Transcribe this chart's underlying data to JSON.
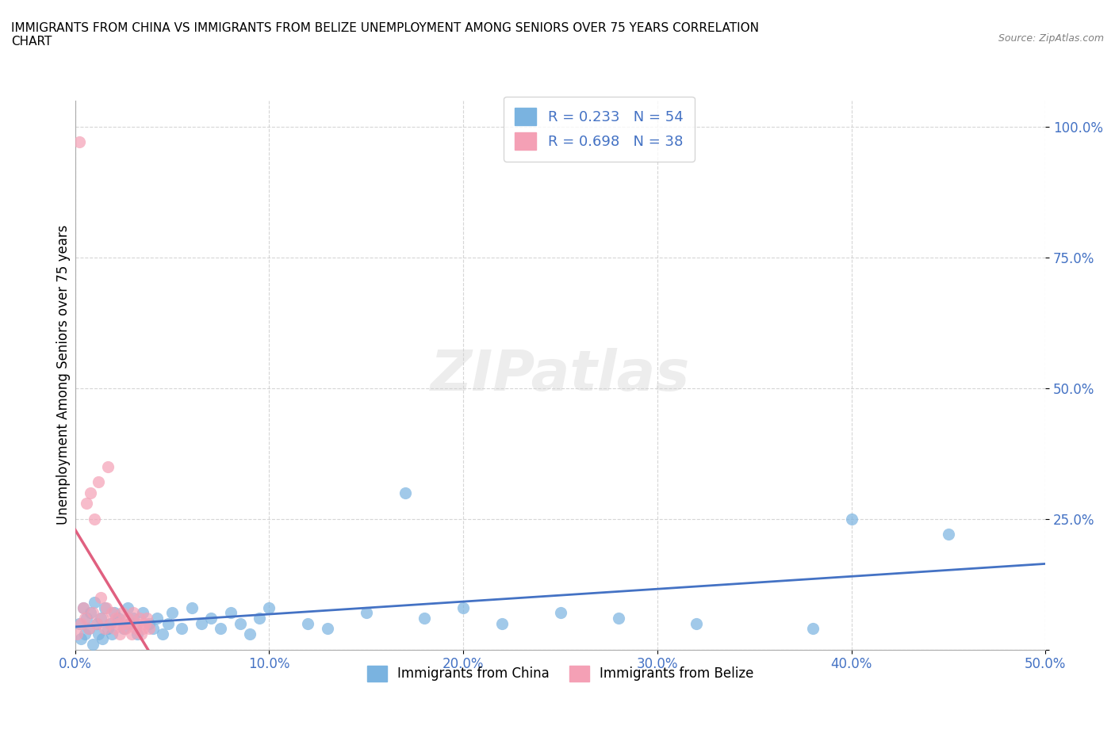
{
  "title": "IMMIGRANTS FROM CHINA VS IMMIGRANTS FROM BELIZE UNEMPLOYMENT AMONG SENIORS OVER 75 YEARS CORRELATION\nCHART",
  "source": "Source: ZipAtlas.com",
  "ylabel": "Unemployment Among Seniors over 75 years",
  "xlabel": "",
  "xlim": [
    0.0,
    0.5
  ],
  "ylim": [
    0.0,
    1.05
  ],
  "xticks": [
    0.0,
    0.1,
    0.2,
    0.3,
    0.4,
    0.5
  ],
  "xticklabels": [
    "0.0%",
    "10.0%",
    "20.0%",
    "30.0%",
    "40.0%",
    "50.0%"
  ],
  "yticks": [
    0.0,
    0.25,
    0.5,
    0.75,
    1.0
  ],
  "yticklabels": [
    "",
    "25.0%",
    "50.0%",
    "75.0%",
    "100.0%"
  ],
  "color_china": "#7ab3e0",
  "color_belize": "#f4a0b5",
  "trendline_china": "#4472c4",
  "trendline_belize": "#e06080",
  "R_china": 0.233,
  "N_china": 54,
  "R_belize": 0.698,
  "N_belize": 38,
  "legend_label_china": "Immigrants from China",
  "legend_label_belize": "Immigrants from Belize",
  "watermark": "ZIPatlas",
  "china_x": [
    0.002,
    0.003,
    0.004,
    0.005,
    0.006,
    0.007,
    0.008,
    0.009,
    0.01,
    0.011,
    0.012,
    0.013,
    0.014,
    0.015,
    0.017,
    0.018,
    0.019,
    0.02,
    0.022,
    0.025,
    0.027,
    0.028,
    0.03,
    0.032,
    0.035,
    0.038,
    0.04,
    0.042,
    0.045,
    0.048,
    0.05,
    0.055,
    0.06,
    0.065,
    0.07,
    0.075,
    0.08,
    0.085,
    0.09,
    0.095,
    0.1,
    0.12,
    0.13,
    0.15,
    0.17,
    0.18,
    0.2,
    0.22,
    0.25,
    0.28,
    0.32,
    0.38,
    0.4,
    0.45
  ],
  "china_y": [
    0.05,
    0.02,
    0.08,
    0.03,
    0.06,
    0.04,
    0.07,
    0.01,
    0.09,
    0.05,
    0.03,
    0.06,
    0.02,
    0.08,
    0.04,
    0.05,
    0.03,
    0.07,
    0.06,
    0.04,
    0.08,
    0.05,
    0.06,
    0.03,
    0.07,
    0.05,
    0.04,
    0.06,
    0.03,
    0.05,
    0.07,
    0.04,
    0.08,
    0.05,
    0.06,
    0.04,
    0.07,
    0.05,
    0.03,
    0.06,
    0.08,
    0.05,
    0.04,
    0.07,
    0.3,
    0.06,
    0.08,
    0.05,
    0.07,
    0.06,
    0.05,
    0.04,
    0.25,
    0.22
  ],
  "belize_x": [
    0.001,
    0.002,
    0.003,
    0.004,
    0.005,
    0.006,
    0.007,
    0.008,
    0.009,
    0.01,
    0.011,
    0.012,
    0.013,
    0.014,
    0.015,
    0.016,
    0.017,
    0.018,
    0.019,
    0.02,
    0.021,
    0.022,
    0.023,
    0.024,
    0.025,
    0.026,
    0.027,
    0.028,
    0.029,
    0.03,
    0.031,
    0.032,
    0.033,
    0.034,
    0.035,
    0.036,
    0.037,
    0.038
  ],
  "belize_y": [
    0.03,
    0.97,
    0.05,
    0.08,
    0.06,
    0.28,
    0.04,
    0.3,
    0.07,
    0.25,
    0.05,
    0.32,
    0.1,
    0.06,
    0.04,
    0.08,
    0.35,
    0.05,
    0.07,
    0.04,
    0.06,
    0.05,
    0.03,
    0.07,
    0.05,
    0.04,
    0.06,
    0.05,
    0.03,
    0.07,
    0.04,
    0.05,
    0.06,
    0.03,
    0.04,
    0.05,
    0.06,
    0.04
  ]
}
